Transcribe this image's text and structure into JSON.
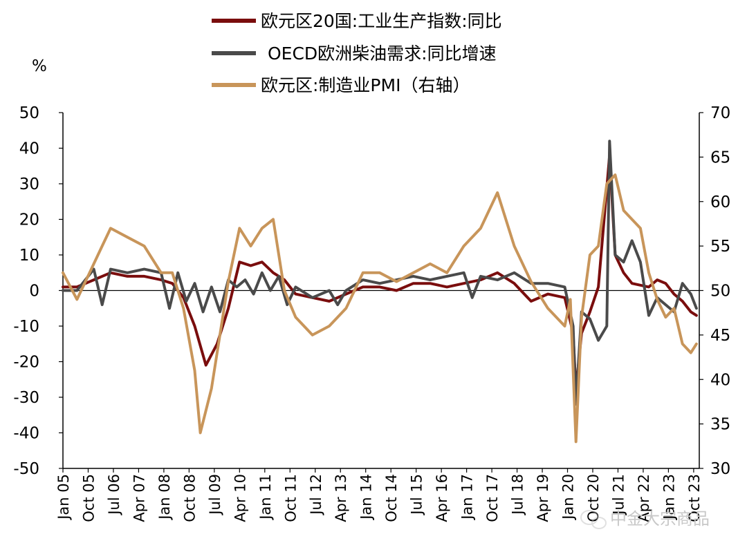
{
  "chart_data": {
    "type": "line",
    "y_unit": "%",
    "y_left": {
      "ticks": [
        50,
        40,
        30,
        20,
        10,
        0,
        -10,
        -20,
        -30,
        -40,
        -50
      ],
      "ylim": [
        -50,
        50
      ]
    },
    "y_right": {
      "ticks": [
        70,
        65,
        60,
        55,
        50,
        45,
        40,
        35,
        30
      ],
      "ylim": [
        30,
        70
      ],
      "label": "右轴"
    },
    "x_ticks": [
      "Jan 05",
      "Oct 05",
      "Jul 06",
      "Apr 07",
      "Jan 08",
      "Oct 08",
      "Jul 09",
      "Apr 10",
      "Jan 11",
      "Oct 11",
      "Jul 12",
      "Apr 13",
      "Jan 14",
      "Oct 14",
      "Jul 15",
      "Apr 16",
      "Jan 17",
      "Oct 17",
      "Jul 18",
      "Apr 19",
      "Jan 20",
      "Oct 20",
      "Jul 21",
      "Apr 22",
      "Jan 23",
      "Oct 23"
    ],
    "legend_position": "top-center",
    "series": [
      {
        "name": "欧元区20国:工业生产指数:同比",
        "color": "#7a0d0d",
        "axis": "left",
        "points": [
          [
            "2005-01",
            1
          ],
          [
            "2005-06",
            1
          ],
          [
            "2005-12",
            3
          ],
          [
            "2006-06",
            5
          ],
          [
            "2006-12",
            4
          ],
          [
            "2007-06",
            4
          ],
          [
            "2007-12",
            3
          ],
          [
            "2008-04",
            2
          ],
          [
            "2008-08",
            -2
          ],
          [
            "2008-12",
            -10
          ],
          [
            "2009-04",
            -21
          ],
          [
            "2009-08",
            -15
          ],
          [
            "2009-12",
            -5
          ],
          [
            "2010-04",
            8
          ],
          [
            "2010-08",
            7
          ],
          [
            "2010-12",
            8
          ],
          [
            "2011-04",
            5
          ],
          [
            "2011-08",
            3
          ],
          [
            "2011-12",
            -1
          ],
          [
            "2012-06",
            -2
          ],
          [
            "2012-12",
            -3
          ],
          [
            "2013-06",
            -1
          ],
          [
            "2013-12",
            1
          ],
          [
            "2014-06",
            1
          ],
          [
            "2014-12",
            0
          ],
          [
            "2015-06",
            2
          ],
          [
            "2015-12",
            2
          ],
          [
            "2016-06",
            1
          ],
          [
            "2016-12",
            2
          ],
          [
            "2017-06",
            3
          ],
          [
            "2017-12",
            5
          ],
          [
            "2018-06",
            2
          ],
          [
            "2018-12",
            -3
          ],
          [
            "2019-06",
            -1
          ],
          [
            "2019-12",
            -2
          ],
          [
            "2020-03",
            -12
          ],
          [
            "2020-04",
            -28
          ],
          [
            "2020-06",
            -12
          ],
          [
            "2020-09",
            -6
          ],
          [
            "2020-12",
            1
          ],
          [
            "2021-04",
            38
          ],
          [
            "2021-06",
            10
          ],
          [
            "2021-09",
            5
          ],
          [
            "2021-12",
            2
          ],
          [
            "2022-06",
            1
          ],
          [
            "2022-09",
            3
          ],
          [
            "2022-12",
            2
          ],
          [
            "2023-03",
            -1
          ],
          [
            "2023-06",
            -3
          ],
          [
            "2023-09",
            -6
          ],
          [
            "2023-11",
            -7
          ]
        ]
      },
      {
        "name": "OECD欧洲柴油需求:同比增速",
        "color": "#4a4a4a",
        "axis": "left",
        "points": [
          [
            "2005-01",
            0
          ],
          [
            "2005-06",
            0
          ],
          [
            "2005-12",
            6
          ],
          [
            "2006-03",
            -4
          ],
          [
            "2006-06",
            6
          ],
          [
            "2006-12",
            5
          ],
          [
            "2007-06",
            6
          ],
          [
            "2007-12",
            5
          ],
          [
            "2008-03",
            -5
          ],
          [
            "2008-06",
            5
          ],
          [
            "2008-09",
            -3
          ],
          [
            "2008-12",
            2
          ],
          [
            "2009-03",
            -6
          ],
          [
            "2009-06",
            1
          ],
          [
            "2009-09",
            -6
          ],
          [
            "2009-12",
            3
          ],
          [
            "2010-03",
            1
          ],
          [
            "2010-06",
            3
          ],
          [
            "2010-09",
            -1
          ],
          [
            "2010-12",
            5
          ],
          [
            "2011-03",
            0
          ],
          [
            "2011-06",
            4
          ],
          [
            "2011-09",
            -4
          ],
          [
            "2011-12",
            1
          ],
          [
            "2012-06",
            -2
          ],
          [
            "2012-12",
            0
          ],
          [
            "2013-03",
            -4
          ],
          [
            "2013-06",
            0
          ],
          [
            "2013-12",
            3
          ],
          [
            "2014-06",
            2
          ],
          [
            "2014-12",
            3
          ],
          [
            "2015-06",
            4
          ],
          [
            "2015-12",
            3
          ],
          [
            "2016-06",
            4
          ],
          [
            "2016-12",
            5
          ],
          [
            "2017-03",
            -2
          ],
          [
            "2017-06",
            4
          ],
          [
            "2017-12",
            3
          ],
          [
            "2018-06",
            5
          ],
          [
            "2018-12",
            2
          ],
          [
            "2019-06",
            2
          ],
          [
            "2019-12",
            1
          ],
          [
            "2020-03",
            -10
          ],
          [
            "2020-04",
            -32
          ],
          [
            "2020-06",
            -6
          ],
          [
            "2020-09",
            -8
          ],
          [
            "2020-12",
            -14
          ],
          [
            "2021-03",
            -10
          ],
          [
            "2021-04",
            42
          ],
          [
            "2021-06",
            10
          ],
          [
            "2021-09",
            8
          ],
          [
            "2021-12",
            14
          ],
          [
            "2022-03",
            8
          ],
          [
            "2022-06",
            -7
          ],
          [
            "2022-09",
            -2
          ],
          [
            "2022-12",
            -4
          ],
          [
            "2023-03",
            -6
          ],
          [
            "2023-06",
            2
          ],
          [
            "2023-09",
            -1
          ],
          [
            "2023-11",
            -5
          ]
        ]
      },
      {
        "name": "欧元区:制造业PMI（右轴）",
        "color": "#c8955a",
        "axis": "right",
        "points": [
          [
            "2005-01",
            52
          ],
          [
            "2005-06",
            49
          ],
          [
            "2005-12",
            53
          ],
          [
            "2006-03",
            55
          ],
          [
            "2006-06",
            57
          ],
          [
            "2006-12",
            56
          ],
          [
            "2007-06",
            55
          ],
          [
            "2007-12",
            52
          ],
          [
            "2008-04",
            52
          ],
          [
            "2008-08",
            48
          ],
          [
            "2008-12",
            41
          ],
          [
            "2009-02",
            34
          ],
          [
            "2009-06",
            39
          ],
          [
            "2009-12",
            51
          ],
          [
            "2010-04",
            57
          ],
          [
            "2010-08",
            55
          ],
          [
            "2010-12",
            57
          ],
          [
            "2011-04",
            58
          ],
          [
            "2011-08",
            50
          ],
          [
            "2011-12",
            47
          ],
          [
            "2012-06",
            45
          ],
          [
            "2012-12",
            46
          ],
          [
            "2013-06",
            48
          ],
          [
            "2013-12",
            52
          ],
          [
            "2014-06",
            52
          ],
          [
            "2014-12",
            51
          ],
          [
            "2015-06",
            52
          ],
          [
            "2015-12",
            53
          ],
          [
            "2016-06",
            52
          ],
          [
            "2016-12",
            55
          ],
          [
            "2017-06",
            57
          ],
          [
            "2017-12",
            61
          ],
          [
            "2018-06",
            55
          ],
          [
            "2018-12",
            51
          ],
          [
            "2019-06",
            48
          ],
          [
            "2019-12",
            46
          ],
          [
            "2020-02",
            49
          ],
          [
            "2020-04",
            33
          ],
          [
            "2020-06",
            47
          ],
          [
            "2020-09",
            54
          ],
          [
            "2020-12",
            55
          ],
          [
            "2021-03",
            62
          ],
          [
            "2021-06",
            63
          ],
          [
            "2021-09",
            59
          ],
          [
            "2021-12",
            58
          ],
          [
            "2022-03",
            57
          ],
          [
            "2022-06",
            52
          ],
          [
            "2022-09",
            49
          ],
          [
            "2022-12",
            47
          ],
          [
            "2023-03",
            48
          ],
          [
            "2023-06",
            44
          ],
          [
            "2023-09",
            43
          ],
          [
            "2023-11",
            44
          ]
        ]
      }
    ]
  },
  "watermark": {
    "text": "中金大宗商品",
    "icon": "wechat-icon"
  }
}
